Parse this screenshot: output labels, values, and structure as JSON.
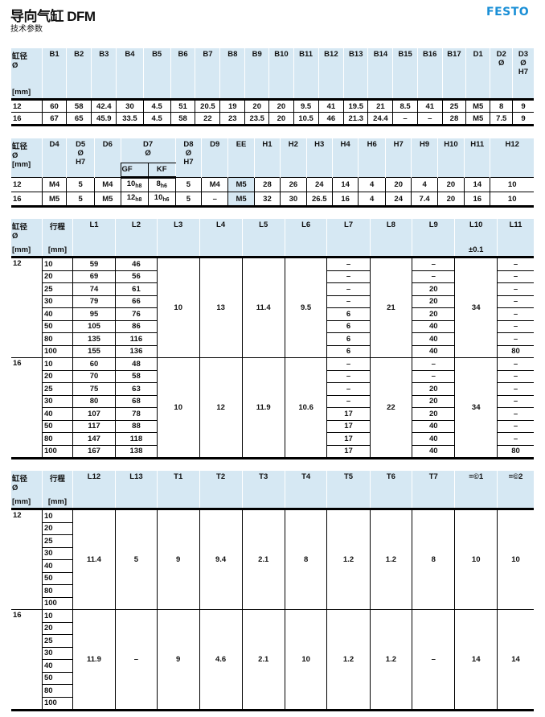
{
  "header": {
    "title": "导向气缸 DFM",
    "subtitle": "技术参数",
    "logo": "FESTO",
    "accent_color": "#1a8fd6",
    "header_bg": "#d6e8f3"
  },
  "table1": {
    "headers": [
      {
        "top": [
          "缸径",
          "Ø"
        ],
        "bottom": "[mm]"
      },
      {
        "top": [
          "B1"
        ]
      },
      {
        "top": [
          "B2"
        ]
      },
      {
        "top": [
          "B3"
        ]
      },
      {
        "top": [
          "B4"
        ]
      },
      {
        "top": [
          "B5"
        ]
      },
      {
        "top": [
          "B6"
        ]
      },
      {
        "top": [
          "B7"
        ]
      },
      {
        "top": [
          "B8"
        ]
      },
      {
        "top": [
          "B9"
        ]
      },
      {
        "top": [
          "B10"
        ]
      },
      {
        "top": [
          "B11"
        ]
      },
      {
        "top": [
          "B12"
        ]
      },
      {
        "top": [
          "B13"
        ]
      },
      {
        "top": [
          "B14"
        ]
      },
      {
        "top": [
          "B15"
        ]
      },
      {
        "top": [
          "B16"
        ]
      },
      {
        "top": [
          "B17"
        ]
      },
      {
        "top": [
          "D1"
        ]
      },
      {
        "top": [
          "D2",
          "Ø"
        ]
      },
      {
        "top": [
          "D3",
          "Ø",
          "H7"
        ]
      }
    ],
    "rows": [
      [
        "12",
        "60",
        "58",
        "42.4",
        "30",
        "4.5",
        "51",
        "20.5",
        "19",
        "20",
        "20",
        "9.5",
        "41",
        "19.5",
        "21",
        "8.5",
        "41",
        "25",
        "M5",
        "8",
        "9"
      ],
      [
        "16",
        "67",
        "65",
        "45.9",
        "33.5",
        "4.5",
        "58",
        "22",
        "23",
        "23.5",
        "20",
        "10.5",
        "46",
        "21.3",
        "24.4",
        "–",
        "–",
        "28",
        "M5",
        "7.5",
        "9"
      ]
    ]
  },
  "table2": {
    "headers": [
      {
        "top": [
          "缸径",
          "Ø",
          "[mm]"
        ]
      },
      {
        "top": [
          "D4"
        ]
      },
      {
        "top": [
          "D5",
          "Ø",
          "H7"
        ]
      },
      {
        "top": [
          "D6"
        ]
      },
      {
        "top": [
          "D7",
          "Ø"
        ],
        "sub": [
          "GF",
          "KF"
        ]
      },
      {
        "top": [
          "D8",
          "Ø",
          "H7"
        ]
      },
      {
        "top": [
          "D9"
        ]
      },
      {
        "top": [
          "EE"
        ]
      },
      {
        "top": [
          "H1"
        ]
      },
      {
        "top": [
          "H2"
        ]
      },
      {
        "top": [
          "H3"
        ]
      },
      {
        "top": [
          "H4"
        ]
      },
      {
        "top": [
          "H6"
        ]
      },
      {
        "top": [
          "H7"
        ]
      },
      {
        "top": [
          "H9"
        ]
      },
      {
        "top": [
          "H10"
        ]
      },
      {
        "top": [
          "H11"
        ]
      },
      {
        "top": [
          "H12"
        ]
      }
    ],
    "rows": [
      [
        "12",
        "M4",
        "5",
        "M4",
        {
          "v": "10",
          "s": "h8"
        },
        {
          "v": "8",
          "s": "h6"
        },
        "5",
        "M4",
        "M5",
        "28",
        "26",
        "24",
        "14",
        "4",
        "20",
        "4",
        "20",
        "14",
        "10"
      ],
      [
        "16",
        "M5",
        "5",
        "M5",
        {
          "v": "12",
          "s": "h8"
        },
        {
          "v": "10",
          "s": "h6"
        },
        "5",
        "–",
        "M5",
        "32",
        "30",
        "26.5",
        "16",
        "4",
        "24",
        "7.4",
        "20",
        "16",
        "10"
      ]
    ]
  },
  "table3": {
    "headers": [
      {
        "top": [
          "缸径",
          "Ø"
        ],
        "bottom": "[mm]"
      },
      {
        "top": [
          "行程"
        ],
        "bottom": "[mm]"
      },
      {
        "top": [
          "L1"
        ]
      },
      {
        "top": [
          "L2"
        ]
      },
      {
        "top": [
          "L3"
        ]
      },
      {
        "top": [
          "L4"
        ]
      },
      {
        "top": [
          "L5"
        ]
      },
      {
        "top": [
          "L6"
        ]
      },
      {
        "top": [
          "L7"
        ]
      },
      {
        "top": [
          "L8"
        ]
      },
      {
        "top": [
          "L9"
        ]
      },
      {
        "top": [
          "L10"
        ],
        "bottom": "±0.1"
      },
      {
        "top": [
          "L11"
        ]
      }
    ],
    "groups": [
      {
        "bore": "12",
        "cols": [
          [
            "10",
            "20",
            "25",
            "30",
            "40",
            "50",
            "80",
            "100"
          ],
          [
            "59",
            "69",
            "74",
            "79",
            "95",
            "105",
            "135",
            "155"
          ],
          [
            "46",
            "56",
            "61",
            "66",
            "76",
            "86",
            "116",
            "136"
          ],
          "10",
          "13",
          "11.4",
          "9.5",
          [
            "–",
            "–",
            "–",
            "–",
            "6",
            "6",
            "6",
            "6"
          ],
          "21",
          [
            "–",
            "–",
            "20",
            "20",
            "20",
            "40",
            "40",
            "40"
          ],
          "34",
          [
            "–",
            "–",
            "–",
            "–",
            "–",
            "–",
            "–",
            "80"
          ]
        ]
      },
      {
        "bore": "16",
        "cols": [
          [
            "10",
            "20",
            "25",
            "30",
            "40",
            "50",
            "80",
            "100"
          ],
          [
            "60",
            "70",
            "75",
            "80",
            "107",
            "117",
            "147",
            "167"
          ],
          [
            "48",
            "58",
            "63",
            "68",
            "78",
            "88",
            "118",
            "138"
          ],
          "10",
          "12",
          "11.9",
          "10.6",
          [
            "–",
            "–",
            "–",
            "–",
            "17",
            "17",
            "17",
            "17"
          ],
          "22",
          [
            "–",
            "–",
            "20",
            "20",
            "20",
            "40",
            "40",
            "40"
          ],
          "34",
          [
            "–",
            "–",
            "–",
            "–",
            "–",
            "–",
            "–",
            "80"
          ]
        ]
      }
    ]
  },
  "table4": {
    "headers": [
      {
        "top": [
          "缸径",
          "Ø"
        ],
        "bottom": "[mm]"
      },
      {
        "top": [
          "行程"
        ],
        "bottom": "[mm]"
      },
      {
        "top": [
          "L12"
        ]
      },
      {
        "top": [
          "L13"
        ]
      },
      {
        "top": [
          "T1"
        ]
      },
      {
        "top": [
          "T2"
        ]
      },
      {
        "top": [
          "T3"
        ]
      },
      {
        "top": [
          "T4"
        ]
      },
      {
        "top": [
          "T5"
        ]
      },
      {
        "top": [
          "T6"
        ]
      },
      {
        "top": [
          "T7"
        ]
      },
      {
        "top": [
          "=©1"
        ]
      },
      {
        "top": [
          "=©2"
        ]
      }
    ],
    "groups": [
      {
        "bore": "12",
        "cols": [
          [
            "10",
            "20",
            "25",
            "30",
            "40",
            "50",
            "80",
            "100"
          ],
          "11.4",
          "5",
          "9",
          "9.4",
          "2.1",
          "8",
          "1.2",
          "1.2",
          "8",
          "10",
          "10"
        ]
      },
      {
        "bore": "16",
        "cols": [
          [
            "10",
            "20",
            "25",
            "30",
            "40",
            "50",
            "80",
            "100"
          ],
          "11.9",
          "–",
          "9",
          "4.6",
          "2.1",
          "10",
          "1.2",
          "1.2",
          "–",
          "14",
          "14"
        ]
      }
    ]
  }
}
